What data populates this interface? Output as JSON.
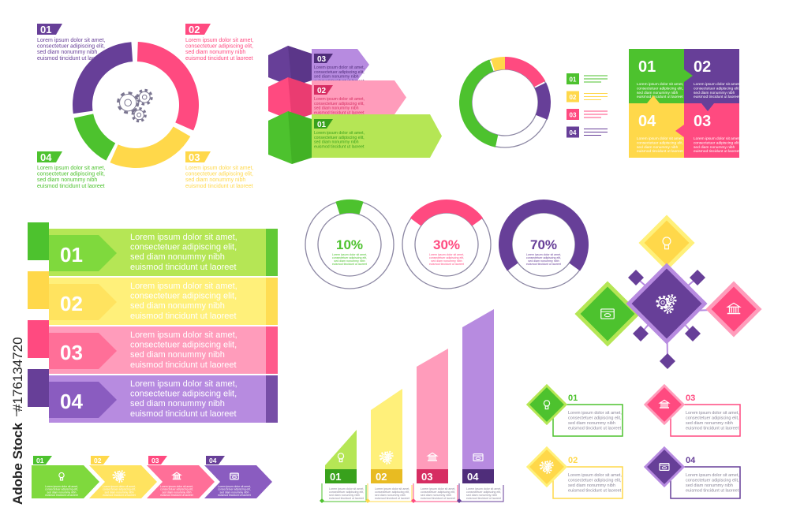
{
  "watermark": {
    "brand": "Adobe Stock",
    "id": "#176134720"
  },
  "lorem": [
    "Lorem ipsum dolor sit amet,",
    "consectetuer adipiscing elit,",
    "sed diam nonummy nibh",
    "euismod tincidunt ut laoreet"
  ],
  "colors": {
    "purple": "#673f98",
    "pink": "#ff4a80",
    "yellow": "#ffd84a",
    "green": "#4dc22e",
    "ring_outline": "#8c87a3",
    "text_gray": "#6f6a80"
  },
  "cycle": {
    "center_icon": "gears-icon",
    "steps": [
      {
        "num": "01",
        "color": "purple"
      },
      {
        "num": "02",
        "color": "pink"
      },
      {
        "num": "03",
        "color": "yellow"
      },
      {
        "num": "04",
        "color": "green"
      }
    ]
  },
  "arrows3d": {
    "steps": [
      {
        "num": "03",
        "color": "purple"
      },
      {
        "num": "02",
        "color": "pink"
      },
      {
        "num": "01",
        "color": "green"
      }
    ]
  },
  "donut": {
    "legend": [
      {
        "num": "01",
        "color": "green"
      },
      {
        "num": "02",
        "color": "yellow"
      },
      {
        "num": "03",
        "color": "pink"
      },
      {
        "num": "04",
        "color": "purple"
      }
    ]
  },
  "puzzle": {
    "tiles": [
      {
        "num": "01",
        "color": "green"
      },
      {
        "num": "02",
        "color": "purple"
      },
      {
        "num": "04",
        "color": "yellow"
      },
      {
        "num": "03",
        "color": "pink"
      }
    ]
  },
  "banners": {
    "steps": [
      {
        "num": "01",
        "color": "green"
      },
      {
        "num": "02",
        "color": "yellow"
      },
      {
        "num": "03",
        "color": "pink"
      },
      {
        "num": "04",
        "color": "purple"
      }
    ]
  },
  "percent_rings": [
    {
      "value": 10,
      "label": "10%",
      "color": "green"
    },
    {
      "value": 30,
      "label": "30%",
      "color": "pink"
    },
    {
      "value": 70,
      "label": "70%",
      "color": "purple"
    }
  ],
  "hub": {
    "center_icon": "gears-icon",
    "nodes": [
      {
        "icon": "lightbulb-icon",
        "color": "yellow"
      },
      {
        "icon": "browser-window-icon",
        "color": "green"
      },
      {
        "icon": "bank-icon",
        "color": "pink"
      }
    ]
  },
  "bars": {
    "steps": [
      {
        "num": "01",
        "color": "green",
        "icon": "lightbulb-icon"
      },
      {
        "num": "02",
        "color": "yellow",
        "icon": "gears-icon"
      },
      {
        "num": "03",
        "color": "pink",
        "icon": "bank-icon"
      },
      {
        "num": "04",
        "color": "purple",
        "icon": "browser-window-icon"
      }
    ]
  },
  "diamond_list": {
    "items": [
      {
        "num": "01",
        "color": "green",
        "icon": "lightbulb-icon"
      },
      {
        "num": "02",
        "color": "yellow",
        "icon": "gears-icon"
      },
      {
        "num": "03",
        "color": "pink",
        "icon": "bank-icon"
      },
      {
        "num": "04",
        "color": "purple",
        "icon": "browser-window-icon"
      }
    ]
  },
  "chevrons": {
    "steps": [
      {
        "num": "01",
        "color": "green",
        "icon": "lightbulb-icon"
      },
      {
        "num": "02",
        "color": "yellow",
        "icon": "gears-icon"
      },
      {
        "num": "03",
        "color": "pink",
        "icon": "bank-icon"
      },
      {
        "num": "04",
        "color": "purple",
        "icon": "browser-window-icon"
      }
    ]
  }
}
